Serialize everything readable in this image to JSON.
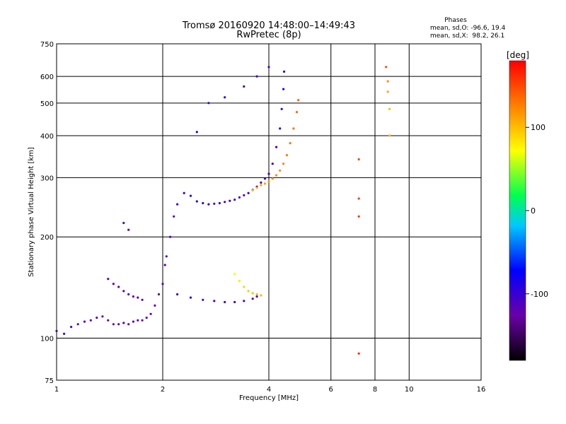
{
  "chart_data": {
    "type": "scatter",
    "title": "Tromsø 20160920 14:48:00–14:49:43",
    "subtitle": "RwPretec (8p)",
    "stats": {
      "label": "Phases",
      "line_o": "mean, sd,O: -96.6, 19.4",
      "line_x": "mean, sd,X:  98.2, 26.1"
    },
    "xlabel": "Frequency [MHz]",
    "ylabel": "Stationary phase Virtual Height [km]",
    "x_scale": "log",
    "y_scale": "log",
    "xlim": [
      1,
      16
    ],
    "ylim": [
      75,
      750
    ],
    "x_ticks": [
      1,
      2,
      4,
      6,
      8,
      10,
      16
    ],
    "y_ticks": [
      75,
      100,
      200,
      300,
      400,
      500,
      600,
      750
    ],
    "grid": true,
    "colorbar": {
      "label": "[deg]",
      "range": [
        -180,
        180
      ],
      "ticks": [
        100,
        0,
        -100
      ]
    },
    "series": [
      {
        "points": [
          [
            1.0,
            105,
            -110
          ],
          [
            1.05,
            103,
            -108
          ],
          [
            1.1,
            108,
            -112
          ],
          [
            1.15,
            110,
            -115
          ],
          [
            1.2,
            112,
            -115
          ],
          [
            1.25,
            113,
            -118
          ],
          [
            1.3,
            115,
            -116
          ],
          [
            1.35,
            116,
            -118
          ],
          [
            1.4,
            113,
            -120
          ],
          [
            1.45,
            110,
            -121
          ],
          [
            1.5,
            110,
            -119
          ],
          [
            1.55,
            111,
            -120
          ],
          [
            1.6,
            110,
            -122
          ],
          [
            1.65,
            112,
            -120
          ],
          [
            1.7,
            113,
            -121
          ],
          [
            1.75,
            113,
            -122
          ],
          [
            1.8,
            115,
            -122
          ],
          [
            1.85,
            118,
            -121
          ],
          [
            1.9,
            125,
            -118
          ],
          [
            1.95,
            135,
            -115
          ],
          [
            2.0,
            145,
            -113
          ],
          [
            2.03,
            165,
            -110
          ],
          [
            2.05,
            175,
            -108
          ],
          [
            2.1,
            200,
            -110
          ],
          [
            2.15,
            230,
            -106
          ],
          [
            2.2,
            250,
            -100
          ],
          [
            2.3,
            270,
            -98
          ],
          [
            2.4,
            265,
            -96
          ],
          [
            2.5,
            255,
            -95
          ],
          [
            2.6,
            252,
            -96
          ],
          [
            2.7,
            250,
            -98
          ],
          [
            2.8,
            251,
            -100
          ],
          [
            2.9,
            252,
            -103
          ],
          [
            3.0,
            254,
            -106
          ],
          [
            3.1,
            256,
            -108
          ],
          [
            3.2,
            258,
            -107
          ],
          [
            3.3,
            262,
            -105
          ],
          [
            3.4,
            266,
            -103
          ],
          [
            3.5,
            270,
            -102
          ],
          [
            3.6,
            276,
            -101
          ],
          [
            3.7,
            282,
            -100
          ],
          [
            3.8,
            290,
            -99
          ],
          [
            3.9,
            298,
            -98
          ],
          [
            4.0,
            308,
            -97
          ],
          [
            4.1,
            330,
            -96
          ],
          [
            4.2,
            370,
            -95
          ],
          [
            4.3,
            420,
            -93
          ],
          [
            4.35,
            480,
            -92
          ],
          [
            4.4,
            550,
            -90
          ],
          [
            4.42,
            620,
            -90
          ],
          [
            2.2,
            135,
            -100
          ],
          [
            2.4,
            132,
            -98
          ],
          [
            2.6,
            130,
            -101
          ],
          [
            2.8,
            129,
            -103
          ],
          [
            3.0,
            128,
            -104
          ],
          [
            3.2,
            128,
            -106
          ],
          [
            3.4,
            129,
            -108
          ],
          [
            3.6,
            131,
            -110
          ],
          [
            3.7,
            133,
            -109
          ],
          [
            1.4,
            150,
            -118
          ],
          [
            1.45,
            145,
            -121
          ],
          [
            1.5,
            142,
            -119
          ],
          [
            1.55,
            138,
            -120
          ],
          [
            1.6,
            135,
            -122
          ],
          [
            1.65,
            133,
            -121
          ],
          [
            1.7,
            132,
            -120
          ],
          [
            1.75,
            130,
            -118
          ],
          [
            1.55,
            220,
            -112
          ],
          [
            1.6,
            210,
            -114
          ],
          [
            2.5,
            410,
            -80
          ],
          [
            2.7,
            500,
            -95
          ],
          [
            3.0,
            520,
            -92
          ],
          [
            3.4,
            560,
            -96
          ],
          [
            3.7,
            600,
            -100
          ],
          [
            4.0,
            640,
            -104
          ]
        ]
      },
      {
        "points": [
          [
            3.6,
            275,
            100
          ],
          [
            3.7,
            280,
            105
          ],
          [
            3.8,
            285,
            110
          ],
          [
            3.9,
            288,
            112
          ],
          [
            4.0,
            292,
            115
          ],
          [
            4.1,
            298,
            118
          ],
          [
            4.2,
            305,
            120
          ],
          [
            4.3,
            315,
            122
          ],
          [
            4.4,
            330,
            125
          ],
          [
            4.5,
            350,
            128
          ],
          [
            4.6,
            380,
            130
          ],
          [
            4.7,
            420,
            132
          ],
          [
            4.8,
            470,
            136
          ],
          [
            4.85,
            510,
            140
          ],
          [
            3.2,
            155,
            70
          ],
          [
            3.3,
            148,
            80
          ],
          [
            3.4,
            142,
            90
          ],
          [
            3.5,
            138,
            95
          ],
          [
            3.6,
            136,
            100
          ],
          [
            3.7,
            135,
            102
          ],
          [
            3.8,
            134,
            104
          ],
          [
            7.2,
            340,
            150
          ],
          [
            7.2,
            260,
            155
          ],
          [
            7.2,
            230,
            160
          ],
          [
            7.2,
            90,
            165
          ],
          [
            8.6,
            640,
            150
          ],
          [
            8.7,
            580,
            120
          ],
          [
            8.7,
            540,
            110
          ],
          [
            8.8,
            480,
            100
          ],
          [
            8.8,
            400,
            105
          ]
        ]
      }
    ]
  }
}
